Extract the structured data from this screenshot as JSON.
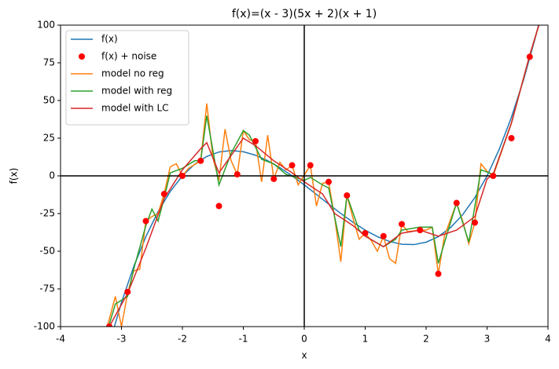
{
  "chart_data": {
    "type": "line",
    "title": "f(x)=(x - 3)(5x + 2)(x + 1)",
    "x_label": "x",
    "y_label": "f(x)",
    "xlim": [
      -4,
      4
    ],
    "ylim": [
      -100,
      100
    ],
    "xticks": [
      -4,
      -3,
      -2,
      -1,
      0,
      1,
      2,
      3,
      4
    ],
    "yticks": [
      -100,
      -75,
      -50,
      -25,
      0,
      25,
      50,
      75,
      100
    ],
    "zero_lines": true,
    "legend": "upper left",
    "series": [
      {
        "name": "f(x)",
        "color": "#1f77b4",
        "style": "line",
        "x": [
          -3.2,
          -3.0,
          -2.8,
          -2.6,
          -2.4,
          -2.2,
          -2.0,
          -1.8,
          -1.6,
          -1.4,
          -1.2,
          -1.0,
          -0.8,
          -0.6,
          -0.4,
          -0.2,
          0,
          0.2,
          0.4,
          0.6,
          0.8,
          1.0,
          1.2,
          1.4,
          1.6,
          1.8,
          2.0,
          2.2,
          2.4,
          2.6,
          2.8,
          3.0,
          3.2,
          3.4,
          3.6,
          3.8,
          4.0
        ],
        "values": [
          -111.6,
          -84,
          -60.32,
          -40.32,
          -23.76,
          -10.4,
          0,
          7.68,
          12.88,
          15.84,
          16.8,
          16,
          13.68,
          10.08,
          5.44,
          0,
          -6,
          -12.32,
          -18.72,
          -24.96,
          -30.8,
          -36,
          -40.32,
          -43.52,
          -45.36,
          -45.6,
          -44,
          -40.32,
          -34.32,
          -25.76,
          -14.4,
          0,
          17.68,
          38.88,
          63.84,
          92.8,
          126
        ]
      },
      {
        "name": "f(x) + noise",
        "color": "#ff0000",
        "style": "marker",
        "x": [
          -3.2,
          -2.9,
          -2.6,
          -2.3,
          -2.0,
          -1.7,
          -1.4,
          -1.1,
          -0.8,
          -0.5,
          -0.2,
          0.1,
          0.4,
          0.7,
          1.0,
          1.3,
          1.6,
          1.9,
          2.2,
          2.5,
          2.8,
          3.1,
          3.4,
          3.7
        ],
        "values": [
          -100,
          -77,
          -30,
          -12,
          0,
          10,
          -20,
          1,
          23,
          -2,
          7,
          7,
          -4,
          -13,
          -38,
          -40,
          -32,
          -36,
          -65,
          -18,
          -31,
          0,
          25,
          79
        ]
      },
      {
        "name": "model no reg",
        "color": "#ff7f0e",
        "style": "line",
        "x": [
          -3.3,
          -3.1,
          -3.0,
          -2.9,
          -2.8,
          -2.7,
          -2.6,
          -2.5,
          -2.4,
          -2.3,
          -2.2,
          -2.1,
          -2.0,
          -1.9,
          -1.7,
          -1.6,
          -1.5,
          -1.4,
          -1.3,
          -1.2,
          -1.1,
          -1.0,
          -0.9,
          -0.8,
          -0.7,
          -0.6,
          -0.5,
          -0.4,
          -0.3,
          -0.2,
          -0.1,
          0.1,
          0.2,
          0.3,
          0.4,
          0.5,
          0.6,
          0.7,
          0.8,
          0.9,
          1.0,
          1.1,
          1.2,
          1.3,
          1.4,
          1.5,
          1.6,
          1.7,
          1.9,
          2.0,
          2.1,
          2.2,
          2.3,
          2.5,
          2.6,
          2.7,
          2.8,
          2.9,
          3.0,
          3.1,
          3.4,
          3.7,
          3.85
        ],
        "values": [
          -110,
          -80,
          -100,
          -78,
          -63,
          -62,
          -30,
          -27,
          -25,
          -12,
          6,
          8,
          0,
          5,
          10,
          48,
          12,
          -3,
          31,
          10,
          1,
          30,
          24,
          23,
          -4,
          27,
          -2,
          9,
          4,
          7,
          -6,
          7,
          -20,
          -5,
          -4,
          -28,
          -57,
          -13,
          -28,
          -42,
          -38,
          -43,
          -50,
          -40,
          -55,
          -58,
          -32,
          -37,
          -36,
          -36,
          -34,
          -65,
          -40,
          -18,
          -30,
          -45,
          -31,
          8,
          3,
          0,
          35,
          80,
          100
        ]
      },
      {
        "name": "model with reg",
        "color": "#2ca02c",
        "style": "line",
        "x": [
          -3.3,
          -3.1,
          -2.9,
          -2.8,
          -2.6,
          -2.5,
          -2.4,
          -2.3,
          -2.2,
          -2.0,
          -1.8,
          -1.7,
          -1.6,
          -1.4,
          -1.2,
          -1.0,
          -0.9,
          -0.7,
          -0.5,
          -0.3,
          0.0,
          0.1,
          0.3,
          0.4,
          0.6,
          0.7,
          0.9,
          1.0,
          1.3,
          1.5,
          1.6,
          1.9,
          2.1,
          2.2,
          2.4,
          2.5,
          2.7,
          2.9,
          3.1,
          3.4,
          3.7,
          3.85
        ],
        "values": [
          -112,
          -85,
          -80,
          -62,
          -33,
          -22,
          -30,
          -15,
          2,
          5,
          10,
          10,
          40,
          -6,
          15,
          30,
          27,
          11,
          8,
          1,
          -3,
          -1,
          -6,
          -8,
          -47,
          -13,
          -36,
          -40,
          -47,
          -42,
          -36,
          -34,
          -34,
          -58,
          -31,
          -18,
          -44,
          4,
          1,
          35,
          80,
          100
        ]
      },
      {
        "name": "model with LC",
        "color": "#d62728",
        "style": "line",
        "x": [
          -3.2,
          -2.9,
          -2.6,
          -2.3,
          -2.0,
          -1.7,
          -1.6,
          -1.4,
          -1.0,
          -0.8,
          -0.5,
          -0.2,
          0.0,
          0.3,
          0.5,
          0.8,
          1.0,
          1.3,
          1.6,
          1.9,
          2.2,
          2.5,
          2.8,
          3.0,
          3.1,
          3.4,
          3.7,
          3.85
        ],
        "values": [
          -100,
          -78,
          -48,
          -15,
          4,
          18,
          22,
          2,
          25,
          20,
          10,
          2,
          -4,
          -12,
          -25,
          -33,
          -40,
          -47,
          -38,
          -36,
          -40,
          -36,
          -27,
          -2,
          1,
          35,
          80,
          100
        ]
      }
    ]
  }
}
